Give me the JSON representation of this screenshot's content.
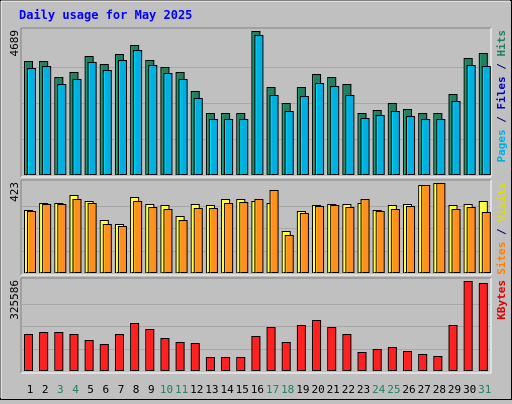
{
  "chart_data": {
    "title": "Daily usage for May 2025",
    "type": "bar",
    "days": [
      "1",
      "2",
      "3",
      "4",
      "5",
      "6",
      "7",
      "8",
      "9",
      "10",
      "11",
      "12",
      "13",
      "14",
      "15",
      "16",
      "17",
      "18",
      "19",
      "20",
      "21",
      "22",
      "23",
      "24",
      "25",
      "26",
      "27",
      "28",
      "29",
      "30",
      "31"
    ],
    "weekend_days": [
      3,
      4,
      10,
      11,
      17,
      18,
      24,
      25,
      31
    ],
    "panels": [
      {
        "name": "top",
        "ymax_label": "4689",
        "ymax": 4689,
        "right_label": [
          {
            "text": "Pages",
            "color": "#00b0e0"
          },
          {
            "text": " / ",
            "color": "#000080"
          },
          {
            "text": "Files",
            "color": "#0000c0"
          },
          {
            "text": " / ",
            "color": "#000080"
          },
          {
            "text": "Hits",
            "color": "#208060"
          }
        ],
        "series": [
          {
            "key": "hits",
            "color": "#208060",
            "values": [
              3720,
              3720,
              3180,
              3340,
              3860,
              3630,
              3940,
              4240,
              3750,
              3520,
              3360,
              2730,
              2010,
              2010,
              2010,
              4689,
              2880,
              2330,
              2870,
              3280,
              3200,
              2950,
              2010,
              2130,
              2330,
              2150,
              2010,
              2010,
              2630,
              3820,
              3960
            ]
          },
          {
            "key": "files",
            "color": "#00b0e0",
            "values": [
              3470,
              3550,
              2950,
              3110,
              3690,
              3410,
              3740,
              4080,
              3580,
              3330,
              3140,
              2520,
              1810,
              1810,
              1810,
              4550,
              2600,
              2070,
              2560,
              2990,
              2900,
              2610,
              1860,
              1950,
              2070,
              1920,
              1810,
              1810,
              2410,
              3570,
              3550
            ]
          }
        ]
      },
      {
        "name": "middle",
        "ymax_label": "423",
        "ymax": 423,
        "right_label": [
          {
            "text": "Sites",
            "color": "#ff8000"
          },
          {
            "text": " / ",
            "color": "#000080"
          },
          {
            "text": "Visits",
            "color": "#e0e000"
          }
        ],
        "series": [
          {
            "key": "visits",
            "color": "#ffff40",
            "values": [
              298,
              330,
              330,
              367,
              340,
              248,
              230,
              357,
              325,
              318,
              268,
              325,
              318,
              346,
              350,
              337,
              330,
              197,
              290,
              318,
              325,
              325,
              330,
              298,
              318,
              325,
              413,
              423,
              318,
              325,
              340
            ]
          },
          {
            "key": "sites",
            "color": "#ff9020",
            "values": [
              290,
              322,
              322,
              350,
              330,
              230,
              220,
              340,
              310,
              300,
              250,
              305,
              305,
              330,
              335,
              350,
              390,
              180,
              280,
              315,
              320,
              310,
              350,
              290,
              300,
              317,
              413,
              423,
              300,
              310,
              285
            ]
          }
        ]
      },
      {
        "name": "bottom",
        "ymax_label": "325586",
        "ymax": 325586,
        "right_label": [
          {
            "text": "KBytes",
            "color": "#e00000"
          }
        ],
        "series": [
          {
            "key": "kbytes",
            "color": "#ff2020",
            "values": [
              134000,
              140000,
              140000,
              134000,
              111000,
              98000,
              134000,
              172000,
              153000,
              118000,
              105000,
              101000,
              52000,
              52000,
              52000,
              128000,
              158000,
              105000,
              165000,
              184000,
              158000,
              134000,
              67000,
              80000,
              87000,
              73000,
              60000,
              55000,
              168000,
              325586,
              320000
            ]
          }
        ]
      }
    ]
  }
}
